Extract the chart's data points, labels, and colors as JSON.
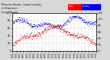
{
  "background_color": "#d8d8d8",
  "plot_bg_color": "#ffffff",
  "grid_color": "#cccccc",
  "humidity_color": "#0000dd",
  "temp_color": "#dd0000",
  "legend_blue_color": "#0000ff",
  "legend_red_color": "#ff0000",
  "ylim_left": [
    0,
    100
  ],
  "ylim_right": [
    0,
    120
  ],
  "yticks_left": [
    0,
    20,
    40,
    60,
    80,
    100
  ],
  "yticks_right": [
    0,
    20,
    40,
    60,
    80,
    100,
    120
  ],
  "num_points": 288,
  "title_left": "Milwaukee Weather  Outdoor Humidity",
  "title_right": "vs Temperature",
  "subtitle": "Every 5 Minutes"
}
